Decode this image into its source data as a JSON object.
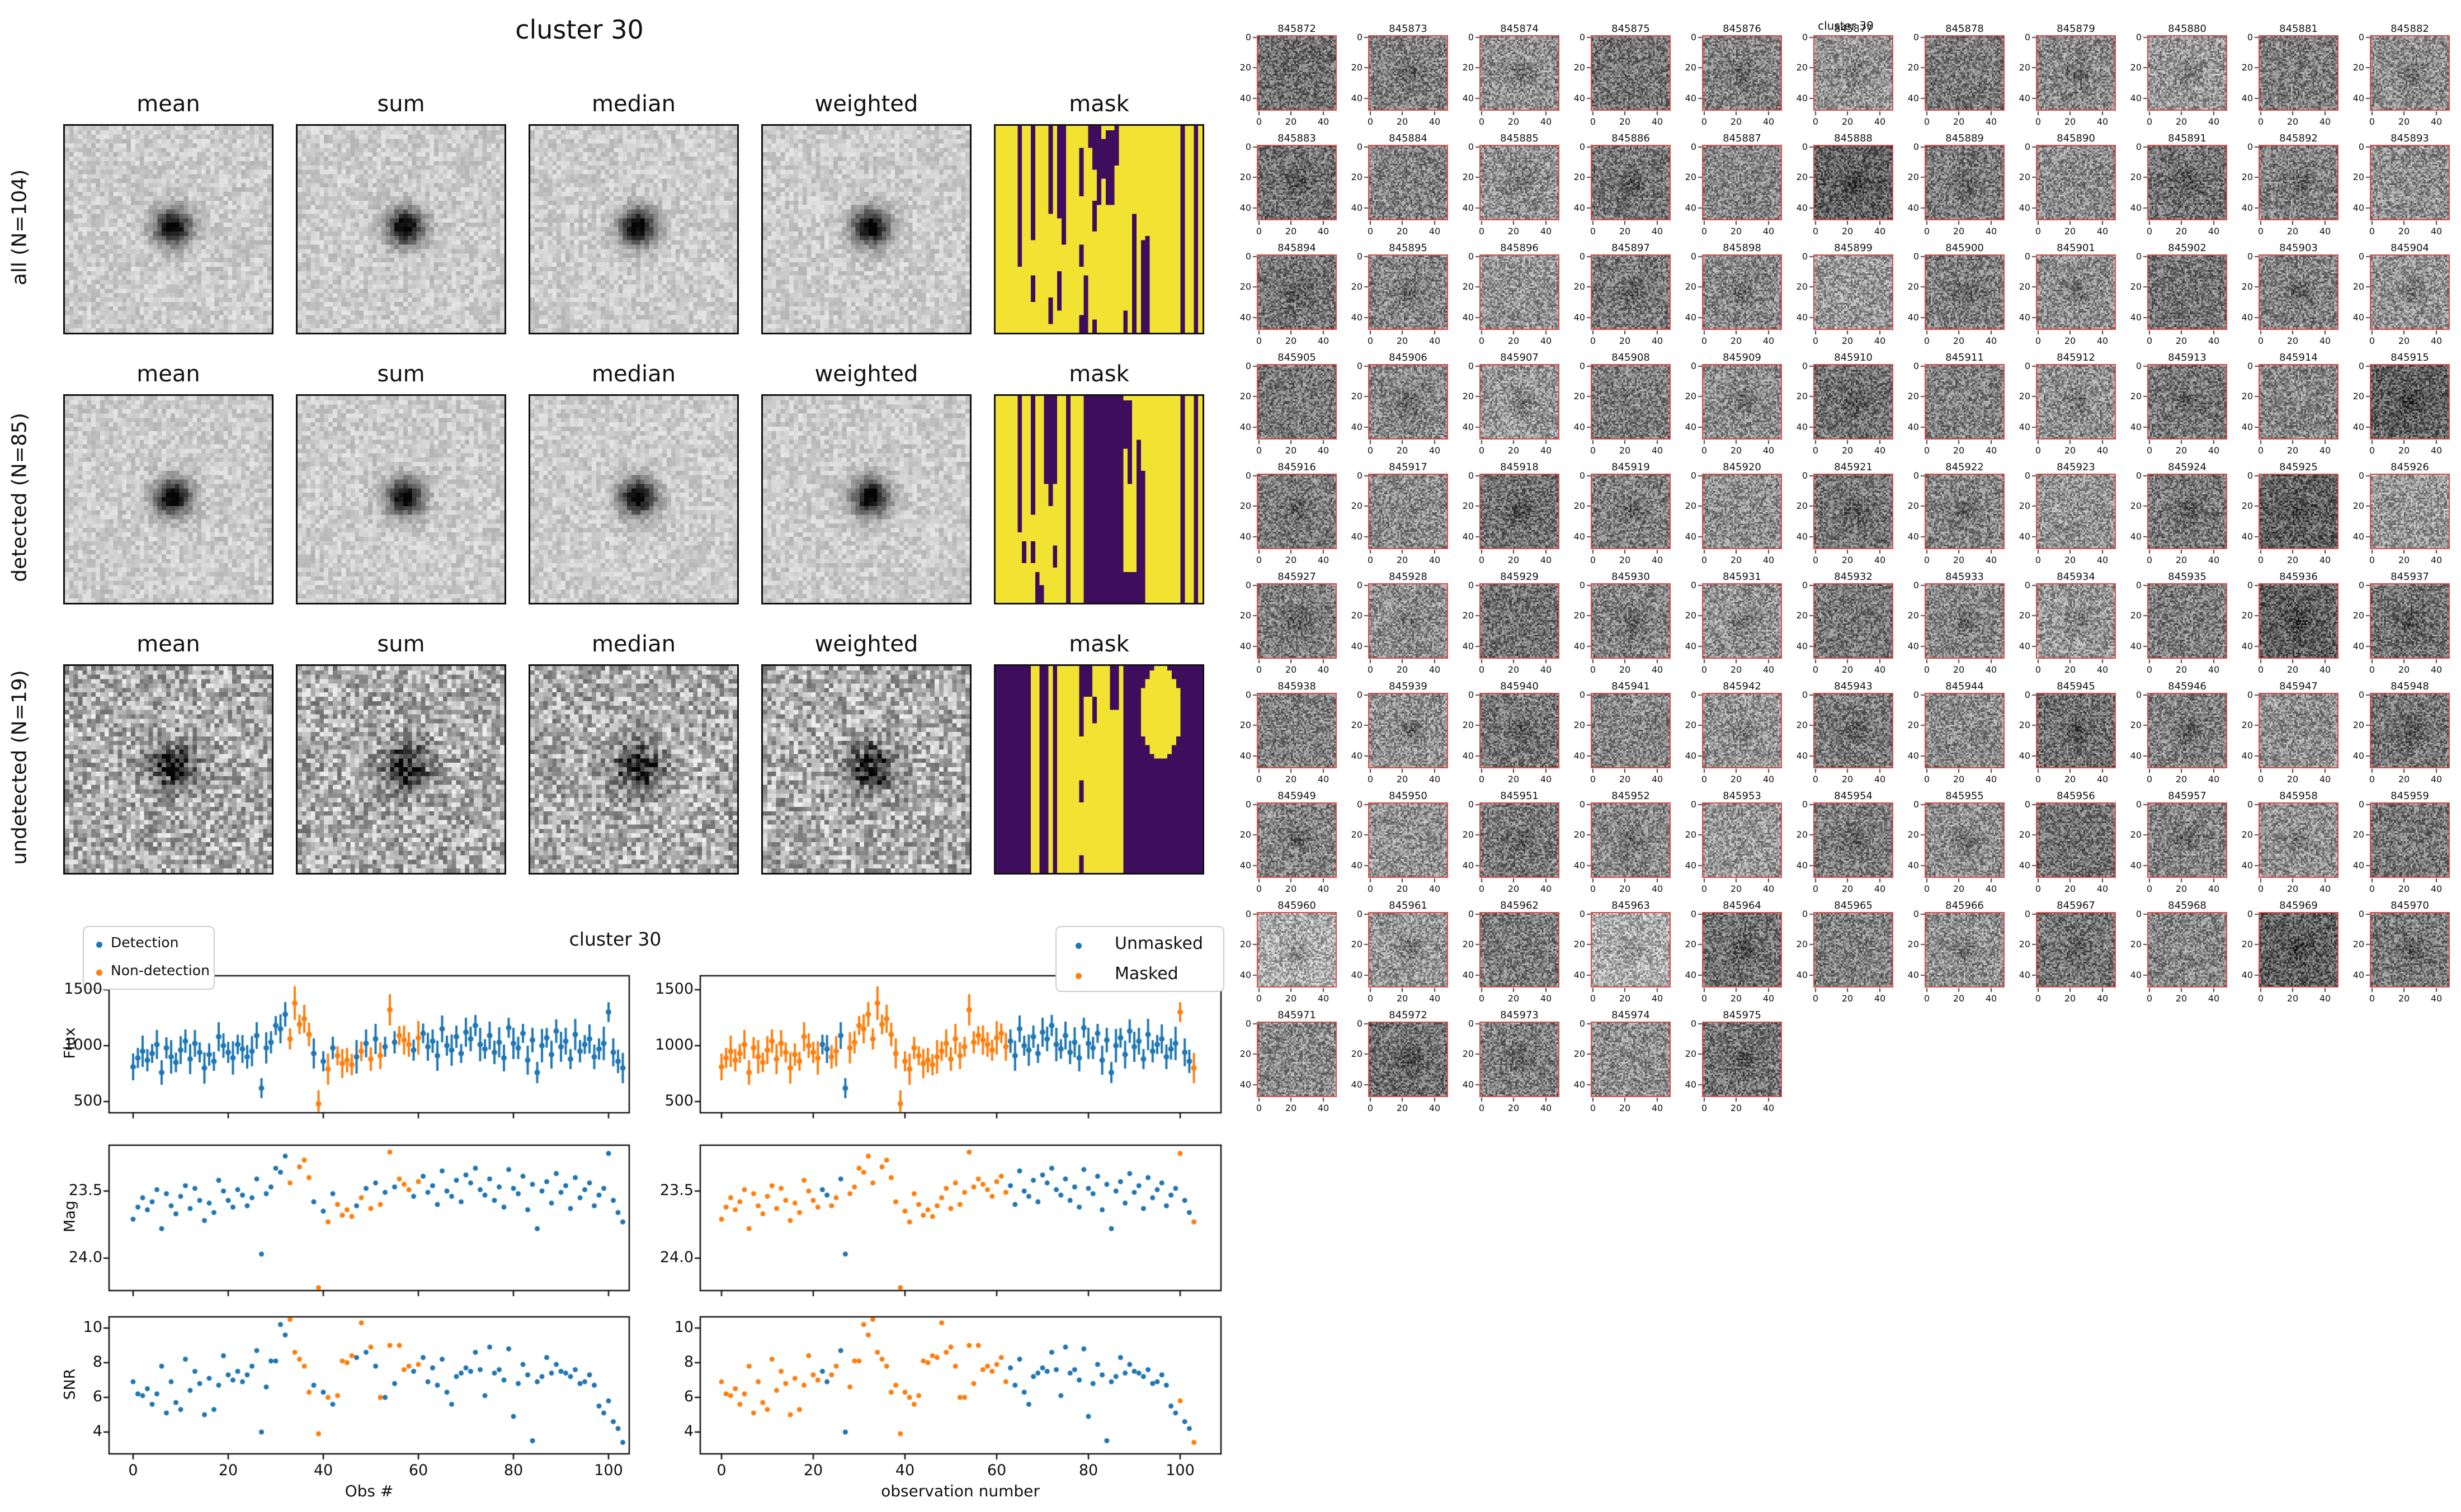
{
  "stamp_panel": {
    "title": "cluster 30",
    "column_headers": [
      "mean",
      "sum",
      "median",
      "weighted",
      "mask"
    ],
    "rows": [
      {
        "label": "all (N=104)"
      },
      {
        "label": "detected (N=85)"
      },
      {
        "label": "undetected (N=19)"
      }
    ],
    "mask_colors": {
      "yellow": "#f2e232",
      "purple": "#3f0d5e"
    },
    "masks": [
      {
        "bg": "#f2e232",
        "fg": "#3f0d5e",
        "rects": [
          [
            4.7,
            1,
            0,
            32
          ],
          [
            7.8,
            1,
            0,
            26
          ],
          [
            7.8,
            1,
            34,
            40
          ],
          [
            11.6,
            1,
            0,
            20
          ],
          [
            13.8,
            1.6,
            0,
            21
          ],
          [
            15,
            1,
            21,
            27
          ],
          [
            18.8,
            1,
            5,
            16
          ],
          [
            20.5,
            1.2,
            0,
            5
          ],
          [
            21.5,
            2,
            0,
            10
          ],
          [
            22.8,
            1,
            10,
            18
          ],
          [
            21.6,
            1,
            17,
            24
          ],
          [
            18.9,
            1,
            27,
            32
          ],
          [
            24.3,
            1,
            3,
            12
          ],
          [
            25.3,
            1.6,
            1,
            18
          ],
          [
            26.6,
            1,
            0,
            9
          ],
          [
            14,
            1,
            33,
            42
          ],
          [
            12.2,
            1,
            39,
            45
          ],
          [
            18.5,
            1,
            43,
            47
          ],
          [
            20.3,
            1.2,
            34,
            47
          ],
          [
            21.8,
            1,
            44,
            47
          ],
          [
            31.2,
            1,
            20,
            47
          ],
          [
            33,
            1.6,
            26,
            47
          ],
          [
            33.9,
            0.9,
            25,
            47
          ],
          [
            29,
            1,
            42,
            47
          ],
          [
            42.4,
            0.7,
            0,
            47
          ],
          [
            44.6,
            1.2,
            0,
            47
          ]
        ],
        "over": []
      },
      {
        "bg": "#f2e232",
        "fg": "#3f0d5e",
        "rects": [
          [
            4.7,
            1,
            0,
            31
          ],
          [
            7.8,
            1,
            0,
            27
          ],
          [
            7.8,
            1,
            33,
            38
          ],
          [
            11,
            2.8,
            0,
            20
          ],
          [
            12.4,
            1.4,
            20,
            25
          ],
          [
            16.4,
            0.8,
            0,
            47
          ],
          [
            19.5,
            9,
            0,
            47
          ],
          [
            28.5,
            1.5,
            1,
            12
          ],
          [
            30,
            1,
            3,
            20
          ],
          [
            28.5,
            2.5,
            40,
            47
          ],
          [
            31.5,
            1,
            10,
            47
          ],
          [
            33.3,
            1.2,
            17,
            47
          ],
          [
            42.4,
            0.7,
            0,
            47
          ],
          [
            44.6,
            1.2,
            0,
            47
          ],
          [
            5.8,
            0.8,
            33,
            38
          ],
          [
            9.3,
            1,
            40,
            47
          ],
          [
            12.8,
            1,
            34,
            39
          ],
          [
            10.4,
            1,
            43,
            47
          ]
        ],
        "over": []
      },
      {
        "bg": "#3f0d5e",
        "fg": "#f2e232",
        "rects": [
          [
            8.2,
            2.2,
            0,
            47
          ],
          [
            11.6,
            1.2,
            0,
            47
          ],
          [
            14,
            15,
            0,
            47
          ]
        ],
        "ellipse": [
          37,
          10,
          4.6,
          10.5
        ],
        "over": [
          [
            18.9,
            1,
            0,
            16
          ],
          [
            20.3,
            2.2,
            0,
            7
          ],
          [
            21.5,
            1.2,
            7,
            13
          ],
          [
            19.4,
            0.9,
            26,
            31
          ],
          [
            19.4,
            1,
            43,
            47
          ],
          [
            26.3,
            1.6,
            0,
            10
          ]
        ]
      }
    ]
  },
  "scatter_panel": {
    "title": "cluster 30",
    "legend_left": {
      "items": [
        {
          "label": "Detection",
          "color": "#1f77b4"
        },
        {
          "label": "Non-detection",
          "color": "#ff7f0e"
        }
      ]
    },
    "legend_right": {
      "items": [
        {
          "label": "Unmasked",
          "color": "#1f77b4"
        },
        {
          "label": "Masked",
          "color": "#ff7f0e"
        }
      ]
    },
    "ylabels": [
      "Flux",
      "Mag",
      "SNR"
    ],
    "xlabel_left": "Obs #",
    "xlabel_right": "observation number"
  },
  "thumbnail_grid": {
    "suptitle": "cluster 30",
    "tick_labels": [
      "0",
      "20",
      "40"
    ],
    "border_color": "#e04848",
    "dark_ids": [
      "845888",
      "845915",
      "845925",
      "845936",
      "845969"
    ],
    "light_ids": [
      "845960",
      "845963"
    ],
    "ids": [
      "845872",
      "845873",
      "845874",
      "845875",
      "845876",
      "845877",
      "845878",
      "845879",
      "845880",
      "845881",
      "845882",
      "845883",
      "845884",
      "845885",
      "845886",
      "845887",
      "845888",
      "845889",
      "845890",
      "845891",
      "845892",
      "845893",
      "845894",
      "845895",
      "845896",
      "845897",
      "845898",
      "845899",
      "845900",
      "845901",
      "845902",
      "845903",
      "845904",
      "845905",
      "845906",
      "845907",
      "845908",
      "845909",
      "845910",
      "845911",
      "845912",
      "845913",
      "845914",
      "845915",
      "845916",
      "845917",
      "845918",
      "845919",
      "845920",
      "845921",
      "845922",
      "845923",
      "845924",
      "845925",
      "845926",
      "845927",
      "845928",
      "845929",
      "845930",
      "845931",
      "845932",
      "845933",
      "845934",
      "845935",
      "845936",
      "845937",
      "845938",
      "845939",
      "845940",
      "845941",
      "845942",
      "845943",
      "845944",
      "845945",
      "845946",
      "845947",
      "845948",
      "845949",
      "845950",
      "845951",
      "845952",
      "845953",
      "845954",
      "845955",
      "845956",
      "845957",
      "845958",
      "845959",
      "845960",
      "845961",
      "845962",
      "845963",
      "845964",
      "845965",
      "845966",
      "845967",
      "845968",
      "845969",
      "845970",
      "845971",
      "845972",
      "845973",
      "845974",
      "845975"
    ]
  },
  "chart_data": {
    "type": "scatter",
    "title": "cluster 30",
    "n_obs": 104,
    "xlim": [
      -5,
      108
    ],
    "xticks": [
      "0",
      "20",
      "40",
      "60",
      "80",
      "100"
    ],
    "yticks": {
      "flux": [
        "1500",
        "1000",
        "500"
      ],
      "mag": [
        "23.5",
        "24.0"
      ],
      "snr": [
        "10",
        "8",
        "6",
        "4"
      ]
    },
    "ylims": {
      "flux": [
        400,
        1625
      ],
      "mag": [
        24.25,
        23.16
      ],
      "snr": [
        2.8,
        10.65
      ]
    },
    "ylabels": [
      "Flux",
      "Mag",
      "SNR"
    ],
    "xlabel_left": "Obs #",
    "xlabel_right": "observation number",
    "colors": {
      "detection": "#1f77b4",
      "nondetection": "#ff7f0e",
      "unmasked": "#1f77b4",
      "masked": "#ff7f0e"
    },
    "series": {
      "flux": [
        810,
        890,
        950,
        870,
        930,
        1010,
        760,
        980,
        900,
        850,
        960,
        1040,
        880,
        1020,
        940,
        800,
        920,
        860,
        1080,
        1000,
        940,
        890,
        1010,
        970,
        900,
        950,
        1090,
        620,
        980,
        1030,
        1180,
        1150,
        1280,
        1060,
        1380,
        1190,
        1240,
        1100,
        930,
        480,
        860,
        790,
        980,
        910,
        840,
        870,
        830,
        900,
        950,
        1020,
        880,
        1060,
        910,
        990,
        1320,
        1030,
        1090,
        1050,
        1010,
        960,
        1070,
        1110,
        990,
        1040,
        910,
        1150,
        1000,
        960,
        1080,
        930,
        1120,
        1060,
        1180,
        1010,
        970,
        1090,
        940,
        1030,
        890,
        1160,
        1020,
        980,
        1110,
        870,
        1050,
        760,
        1000,
        1070,
        920,
        1130,
        990,
        1040,
        880,
        1100,
        950,
        1010,
        1060,
        900,
        970,
        1020,
        1300,
        940,
        860,
        800
      ],
      "flux_err": [
        120,
        90,
        140,
        100,
        85,
        130,
        110,
        95,
        150,
        88,
        125,
        105,
        135,
        120,
        90,
        140,
        100,
        85,
        130,
        110,
        95,
        150,
        88,
        125,
        105,
        135,
        120,
        90,
        140,
        100,
        85,
        130,
        110,
        95,
        150,
        88,
        125,
        105,
        135,
        120,
        90,
        140,
        100,
        85,
        130,
        110,
        95,
        150,
        88,
        125,
        105,
        135,
        120,
        90,
        140,
        100,
        85,
        130,
        110,
        95,
        150,
        88,
        125,
        105,
        135,
        120,
        90,
        140,
        100,
        85,
        130,
        110,
        95,
        150,
        88,
        125,
        105,
        135,
        120,
        90,
        140,
        100,
        85,
        130,
        110,
        95,
        150,
        88,
        125,
        105,
        135,
        120,
        90,
        140,
        100,
        85,
        130,
        110,
        95,
        150,
        88,
        125,
        105,
        135
      ],
      "mag": [
        23.71,
        23.62,
        23.55,
        23.64,
        23.58,
        23.49,
        23.78,
        23.52,
        23.61,
        23.67,
        23.54,
        23.46,
        23.63,
        23.48,
        23.57,
        23.72,
        23.59,
        23.66,
        23.42,
        23.5,
        23.57,
        23.62,
        23.49,
        23.53,
        23.61,
        23.55,
        23.41,
        23.97,
        23.52,
        23.47,
        23.33,
        23.36,
        23.24,
        23.44,
        23.14,
        23.32,
        23.27,
        23.4,
        23.58,
        24.22,
        23.65,
        23.73,
        23.52,
        23.6,
        23.68,
        23.64,
        23.69,
        23.61,
        23.55,
        23.48,
        23.63,
        23.44,
        23.6,
        23.51,
        23.21,
        23.47,
        23.41,
        23.45,
        23.49,
        23.54,
        23.43,
        23.39,
        23.51,
        23.46,
        23.6,
        23.35,
        23.5,
        23.54,
        23.42,
        23.58,
        23.38,
        23.44,
        23.33,
        23.49,
        23.53,
        23.41,
        23.57,
        23.47,
        23.62,
        23.34,
        23.48,
        23.52,
        23.39,
        23.64,
        23.45,
        23.78,
        23.5,
        23.43,
        23.59,
        23.37,
        23.51,
        23.46,
        23.63,
        23.4,
        23.55,
        23.49,
        23.44,
        23.61,
        23.53,
        23.48,
        23.22,
        23.57,
        23.66,
        23.73
      ],
      "snr": [
        6.9,
        6.2,
        6.1,
        6.5,
        5.6,
        6.2,
        7.8,
        5.1,
        6.9,
        5.7,
        5.3,
        8.2,
        6.4,
        7.5,
        6.8,
        5.0,
        7.1,
        5.3,
        6.7,
        8.4,
        7.3,
        7.0,
        7.5,
        6.9,
        7.3,
        7.8,
        8.7,
        4.0,
        6.6,
        8.1,
        8.1,
        10.2,
        9.6,
        10.5,
        8.6,
        8.2,
        7.8,
        6.3,
        6.7,
        3.9,
        6.3,
        6.0,
        5.6,
        6.1,
        8.1,
        8.0,
        8.4,
        8.3,
        10.3,
        8.6,
        8.9,
        7.8,
        6.0,
        6.0,
        9.0,
        6.8,
        9.0,
        7.6,
        7.8,
        7.5,
        7.9,
        8.3,
        6.9,
        7.7,
        6.7,
        8.2,
        6.3,
        5.6,
        7.2,
        7.4,
        7.7,
        7.5,
        8.6,
        7.6,
        6.1,
        8.9,
        7.4,
        7.6,
        7.0,
        8.8,
        4.9,
        6.8,
        7.9,
        7.3,
        3.5,
        6.9,
        7.2,
        8.3,
        7.4,
        7.9,
        7.5,
        7.4,
        7.2,
        7.6,
        6.8,
        6.9,
        7.3,
        6.7,
        5.5,
        5.1,
        5.8,
        4.6,
        4.2,
        3.4
      ],
      "detected": [
        1,
        1,
        1,
        1,
        1,
        1,
        1,
        1,
        1,
        1,
        1,
        1,
        1,
        1,
        1,
        1,
        1,
        1,
        1,
        1,
        1,
        1,
        1,
        1,
        1,
        1,
        1,
        1,
        1,
        1,
        1,
        1,
        1,
        0,
        0,
        0,
        0,
        0,
        1,
        0,
        1,
        0,
        1,
        0,
        0,
        0,
        0,
        1,
        0,
        1,
        0,
        1,
        0,
        1,
        0,
        1,
        0,
        0,
        0,
        1,
        0,
        1,
        1,
        1,
        1,
        1,
        1,
        1,
        1,
        1,
        1,
        1,
        1,
        1,
        1,
        1,
        1,
        1,
        1,
        1,
        1,
        1,
        1,
        1,
        1,
        1,
        1,
        1,
        1,
        1,
        1,
        1,
        1,
        1,
        1,
        1,
        1,
        1,
        1,
        1,
        1,
        1,
        1,
        1
      ],
      "masked": [
        1,
        1,
        1,
        1,
        1,
        1,
        1,
        1,
        1,
        1,
        1,
        1,
        1,
        1,
        1,
        1,
        1,
        1,
        1,
        1,
        1,
        1,
        0,
        0,
        1,
        1,
        0,
        0,
        1,
        1,
        1,
        1,
        1,
        1,
        1,
        1,
        1,
        1,
        1,
        1,
        1,
        1,
        1,
        1,
        1,
        1,
        1,
        1,
        1,
        1,
        1,
        1,
        1,
        1,
        1,
        1,
        1,
        1,
        1,
        1,
        1,
        1,
        1,
        0,
        0,
        0,
        0,
        0,
        0,
        0,
        0,
        0,
        0,
        0,
        0,
        0,
        0,
        0,
        0,
        0,
        0,
        0,
        0,
        0,
        0,
        0,
        0,
        0,
        0,
        0,
        0,
        0,
        0,
        0,
        0,
        0,
        0,
        0,
        0,
        0,
        1,
        0,
        0,
        1
      ]
    }
  }
}
